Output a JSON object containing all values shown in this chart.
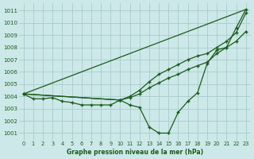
{
  "background_color": "#cce8e8",
  "grid_color": "#aacccc",
  "line_color": "#1a5c1a",
  "xlabel": "Graphe pression niveau de la mer (hPa)",
  "ylim": [
    1000.4,
    1011.6
  ],
  "xlim": [
    -0.5,
    23.5
  ],
  "yticks": [
    1001,
    1002,
    1003,
    1004,
    1005,
    1006,
    1007,
    1008,
    1009,
    1010,
    1011
  ],
  "xticks": [
    0,
    1,
    2,
    3,
    4,
    5,
    6,
    7,
    8,
    9,
    10,
    11,
    12,
    13,
    14,
    15,
    16,
    17,
    18,
    19,
    20,
    21,
    22,
    23
  ],
  "line1_x": [
    0,
    1,
    2,
    3,
    4,
    5,
    6,
    7,
    8,
    9,
    10,
    11,
    12,
    13,
    14,
    15,
    16,
    17,
    18,
    19,
    20,
    21,
    22,
    23
  ],
  "line1_y": [
    1004.2,
    1003.8,
    1003.8,
    1003.9,
    1003.6,
    1003.5,
    1003.3,
    1003.3,
    1003.3,
    1003.3,
    1003.7,
    1003.3,
    1003.1,
    1001.5,
    1001.0,
    1001.0,
    1002.7,
    1003.6,
    1004.3,
    1006.7,
    1007.8,
    1008.0,
    1009.6,
    1011.1
  ],
  "line2_x": [
    0,
    23
  ],
  "line2_y": [
    1004.2,
    1011.1
  ],
  "line3_x": [
    0,
    10,
    11,
    12,
    13,
    14,
    15,
    16,
    17,
    18,
    19,
    20,
    21,
    22,
    23
  ],
  "line3_y": [
    1004.2,
    1003.7,
    1004.0,
    1004.5,
    1005.2,
    1005.8,
    1006.2,
    1006.6,
    1007.0,
    1007.3,
    1007.5,
    1008.0,
    1008.5,
    1009.2,
    1010.8
  ],
  "line4_x": [
    0,
    10,
    11,
    12,
    13,
    14,
    15,
    16,
    17,
    18,
    19,
    20,
    21,
    22,
    23
  ],
  "line4_y": [
    1004.2,
    1003.7,
    1003.9,
    1004.2,
    1004.7,
    1005.1,
    1005.5,
    1005.8,
    1006.2,
    1006.5,
    1006.8,
    1007.5,
    1008.0,
    1008.5,
    1009.3
  ]
}
